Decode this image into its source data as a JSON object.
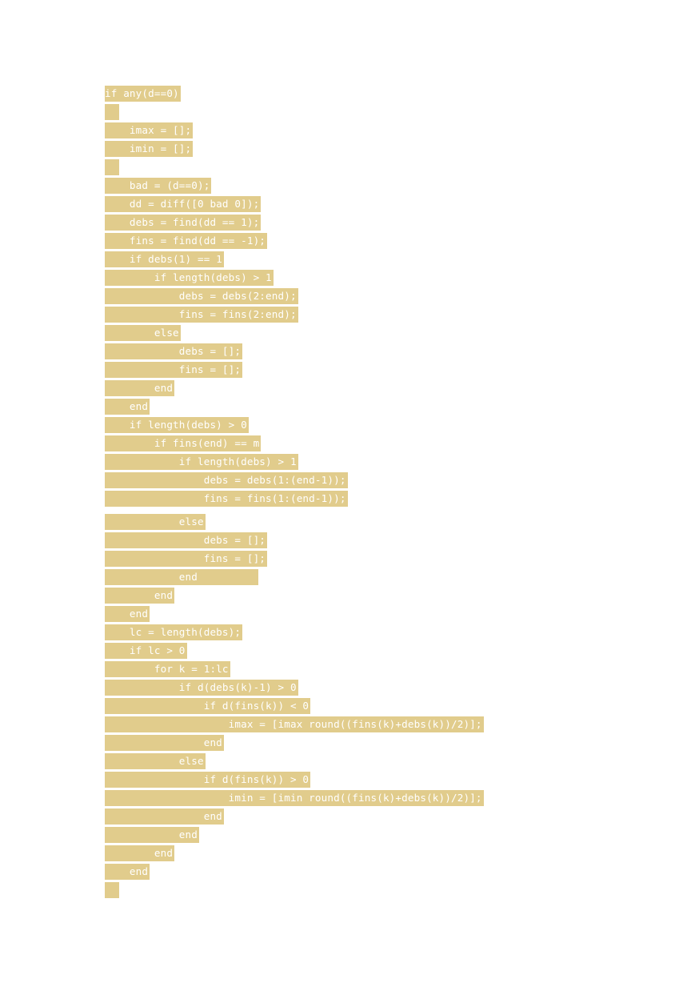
{
  "document": {
    "highlight_color": "#e1cc8c",
    "text_color": "#ffffff",
    "code_lines": [
      "if any(d==0)",
      "",
      "    imax = [];",
      "    imin = [];",
      "",
      "    bad = (d==0);",
      "    dd = diff([0 bad 0]);",
      "    debs = find(dd == 1);",
      "    fins = find(dd == -1);",
      "    if debs(1) == 1",
      "        if length(debs) > 1",
      "            debs = debs(2:end);",
      "            fins = fins(2:end);",
      "        else",
      "            debs = [];",
      "            fins = [];",
      "        end",
      "    end",
      "    if length(debs) > 0",
      "        if fins(end) == m",
      "            if length(debs) > 1",
      "                debs = debs(1:(end-1));",
      "                fins = fins(1:(end-1));",
      "            else",
      "                debs = [];",
      "                fins = [];",
      "            end",
      "        end",
      "    end",
      "    lc = length(debs);",
      "    if lc > 0",
      "        for k = 1:lc",
      "            if d(debs(k)-1) > 0",
      "                if d(fins(k)) < 0",
      "                    imax = [imax round((fins(k)+debs(k))/2)];",
      "                end",
      "            else",
      "                if d(fins(k)) > 0",
      "                    imin = [imin round((fins(k)+debs(k))/2)];",
      "                end",
      "            end",
      "        end",
      "    end",
      ""
    ]
  }
}
